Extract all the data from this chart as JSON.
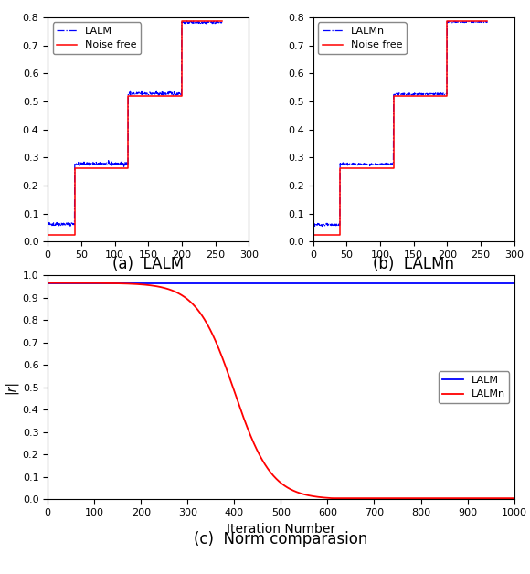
{
  "subplot_a": {
    "caption": "(a)  LALM",
    "legend_lalm": "LALM",
    "legend_noise": "Noise free",
    "xlim": [
      0,
      300
    ],
    "ylim": [
      0,
      0.8
    ],
    "xticks": [
      0,
      50,
      100,
      150,
      200,
      250,
      300
    ],
    "yticks": [
      0,
      0.1,
      0.2,
      0.3,
      0.4,
      0.5,
      0.6,
      0.7,
      0.8
    ]
  },
  "subplot_b": {
    "caption": "(b)  LALMn",
    "legend_lalm": "LALMn",
    "legend_noise": "Noise free",
    "xlim": [
      0,
      300
    ],
    "ylim": [
      0,
      0.8
    ],
    "xticks": [
      0,
      50,
      100,
      150,
      200,
      250,
      300
    ],
    "yticks": [
      0,
      0.1,
      0.2,
      0.3,
      0.4,
      0.5,
      0.6,
      0.7,
      0.8
    ]
  },
  "subplot_c": {
    "caption": "(c)  Norm comparasion",
    "legend_lalm": "LALM",
    "legend_laln": "LALMn",
    "ylabel": "|r|",
    "xlabel": "Iteration Number",
    "xlim": [
      0,
      1000
    ],
    "ylim": [
      0,
      1
    ],
    "xticks": [
      0,
      100,
      200,
      300,
      400,
      500,
      600,
      700,
      800,
      900,
      1000
    ],
    "yticks": [
      0,
      0.1,
      0.2,
      0.3,
      0.4,
      0.5,
      0.6,
      0.7,
      0.8,
      0.9,
      1.0
    ]
  },
  "blue_color": "#0000FF",
  "red_color": "#FF0000",
  "tick_fontsize": 8,
  "label_fontsize": 10,
  "legend_fontsize": 8,
  "caption_fontsize": 12
}
